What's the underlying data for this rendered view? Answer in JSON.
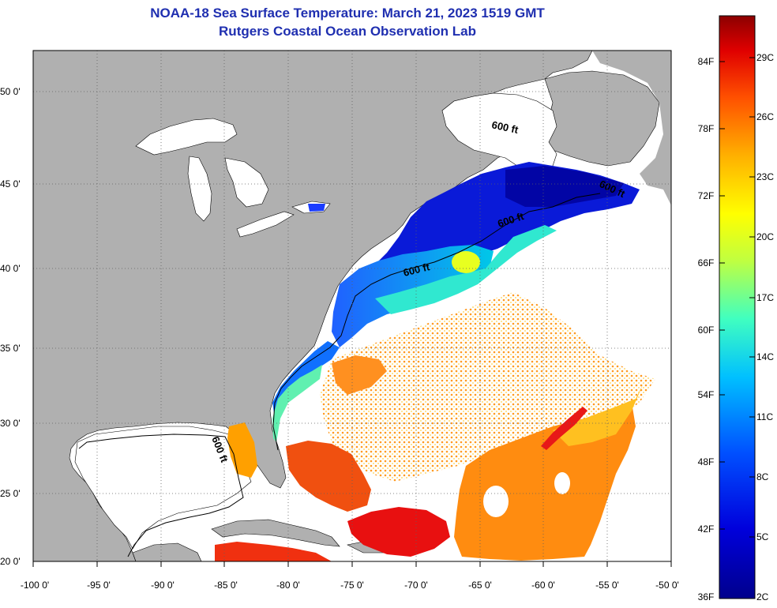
{
  "title_line1": "NOAA-18 Sea Surface Temperature:  March 21, 2023 1519 GMT",
  "title_line2": "Rutgers Coastal Ocean Observation Lab",
  "lat_labels": [
    "50 0'",
    "45 0'",
    "40 0'",
    "35 0'",
    "30 0'",
    "25 0'",
    "20 0'"
  ],
  "lon_labels": [
    "-100 0'",
    "-95 0'",
    "-90 0'",
    "-85 0'",
    "-80 0'",
    "-75 0'",
    "-70 0'",
    "-65 0'",
    "-60 0'",
    "-55 0'",
    "-50 0'"
  ],
  "colorbar": {
    "fahrenheit_labels": [
      "84F",
      "78F",
      "72F",
      "66F",
      "60F",
      "54F",
      "48F",
      "42F",
      "36F"
    ],
    "celsius_labels": [
      "29C",
      "26C",
      "23C",
      "20C",
      "17C",
      "14C",
      "11C",
      "8C",
      "5C",
      "2C"
    ]
  },
  "contour_labels": [
    "600 ft",
    "600 ft",
    "600 ft",
    "600 ft",
    "600 ft"
  ],
  "colors": {
    "land": "#b0b0b0",
    "no_data": "#ffffff",
    "title": "#1f2fb0",
    "cold": "#00008c",
    "warm": "#8c0000"
  }
}
